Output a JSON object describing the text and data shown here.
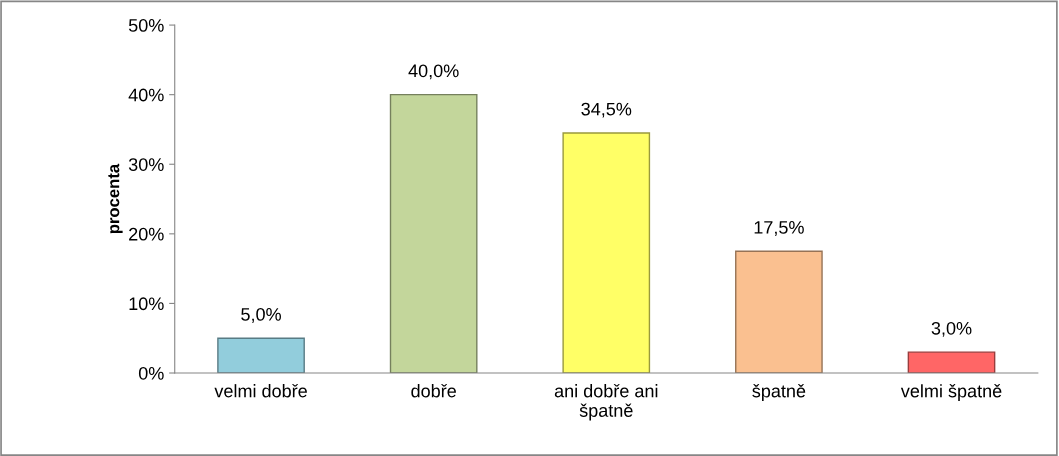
{
  "chart_data": {
    "type": "bar",
    "ylabel": "procenta",
    "categories": [
      "velmi dobře",
      "dobře",
      "ani dobře ani\nšpatně",
      "špatně",
      "velmi špatně"
    ],
    "values": [
      5.0,
      40.0,
      34.5,
      17.5,
      3.0
    ],
    "colors": [
      "#92cddc",
      "#c3d69b",
      "#ffff66",
      "#fac090",
      "#ff6666"
    ],
    "value_labels": [
      "5,0%",
      "40,0%",
      "34,5%",
      "17,5%",
      "3,0%"
    ],
    "ylim": [
      0,
      50
    ],
    "yticks": [
      {
        "value": 0,
        "label": "0%"
      },
      {
        "value": 10,
        "label": "10%"
      },
      {
        "value": 20,
        "label": "20%"
      },
      {
        "value": 30,
        "label": "30%"
      },
      {
        "value": 40,
        "label": "40%"
      },
      {
        "value": 50,
        "label": "50%"
      }
    ],
    "grid": false,
    "legend": false
  }
}
